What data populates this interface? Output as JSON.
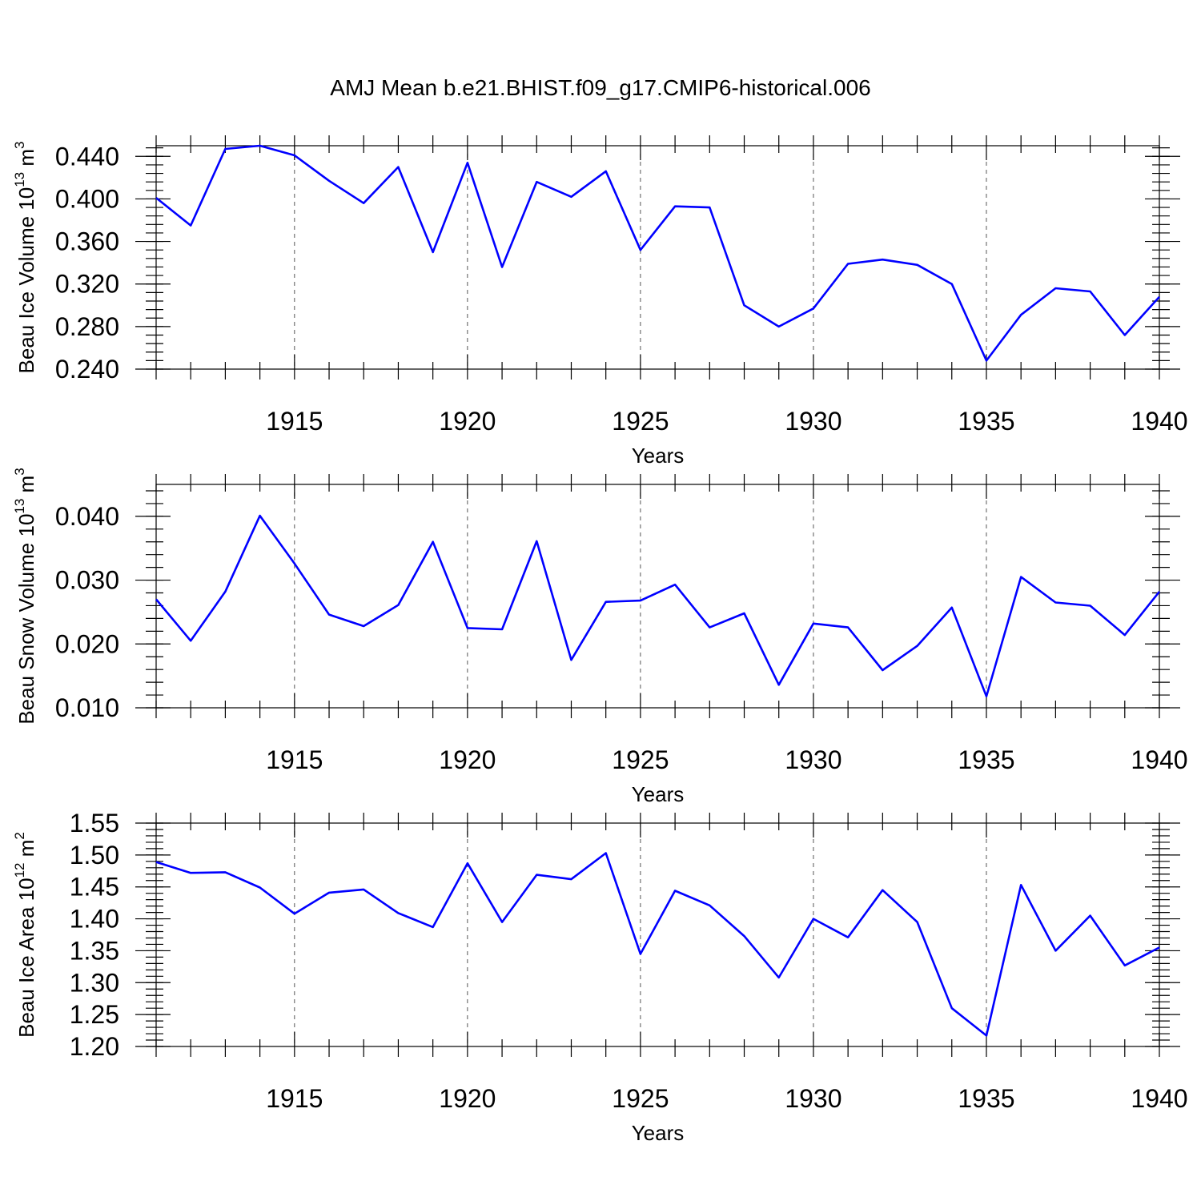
{
  "title": "AMJ Mean b.e21.BHIST.f09_g17.CMIP6-historical.006",
  "series_color": "#0000ff",
  "chart_data": [
    {
      "type": "line",
      "xlabel": "Years",
      "ylabel_parts": [
        "Beau Ice Volume 10",
        "13",
        " m",
        "3"
      ],
      "x": [
        1911,
        1912,
        1913,
        1914,
        1915,
        1916,
        1917,
        1918,
        1919,
        1920,
        1921,
        1922,
        1923,
        1924,
        1925,
        1926,
        1927,
        1928,
        1929,
        1930,
        1931,
        1932,
        1933,
        1934,
        1935,
        1936,
        1937,
        1938,
        1939,
        1940
      ],
      "values": [
        0.401,
        0.375,
        0.447,
        0.45,
        0.441,
        0.417,
        0.396,
        0.43,
        0.35,
        0.434,
        0.336,
        0.416,
        0.402,
        0.426,
        0.352,
        0.393,
        0.392,
        0.3,
        0.28,
        0.297,
        0.339,
        0.343,
        0.338,
        0.32,
        0.248,
        0.291,
        0.316,
        0.313,
        0.272,
        0.308
      ],
      "xlim": [
        1911,
        1940
      ],
      "ylim": [
        0.24,
        0.45
      ],
      "xticks": [
        1915,
        1920,
        1925,
        1930,
        1935,
        1940
      ],
      "xtick_labels": [
        "1915",
        "1920",
        "1925",
        "1930",
        "1935",
        "1940"
      ],
      "yticks": [
        0.24,
        0.28,
        0.32,
        0.36,
        0.4,
        0.44
      ],
      "ytick_labels": [
        "0.240",
        "0.280",
        "0.320",
        "0.360",
        "0.400",
        "0.440"
      ],
      "yminor_step": 0.008
    },
    {
      "type": "line",
      "xlabel": "Years",
      "ylabel_parts": [
        "Beau Snow Volume 10",
        "13",
        " m",
        "3"
      ],
      "x": [
        1911,
        1912,
        1913,
        1914,
        1915,
        1916,
        1917,
        1918,
        1919,
        1920,
        1921,
        1922,
        1923,
        1924,
        1925,
        1926,
        1927,
        1928,
        1929,
        1930,
        1931,
        1932,
        1933,
        1934,
        1935,
        1936,
        1937,
        1938,
        1939,
        1940
      ],
      "values": [
        0.027,
        0.0205,
        0.0282,
        0.0401,
        0.0326,
        0.0246,
        0.0228,
        0.0261,
        0.036,
        0.0225,
        0.0223,
        0.0361,
        0.0175,
        0.0266,
        0.0268,
        0.0293,
        0.0226,
        0.0248,
        0.0136,
        0.0232,
        0.0226,
        0.0159,
        0.0197,
        0.0257,
        0.0118,
        0.0305,
        0.0265,
        0.026,
        0.0214,
        0.0282
      ],
      "xlim": [
        1911,
        1940
      ],
      "ylim": [
        0.01,
        0.045
      ],
      "xticks": [
        1915,
        1920,
        1925,
        1930,
        1935,
        1940
      ],
      "xtick_labels": [
        "1915",
        "1920",
        "1925",
        "1930",
        "1935",
        "1940"
      ],
      "yticks": [
        0.01,
        0.02,
        0.03,
        0.04
      ],
      "ytick_labels": [
        "0.010",
        "0.020",
        "0.030",
        "0.040"
      ],
      "yminor_step": 0.002
    },
    {
      "type": "line",
      "xlabel": "Years",
      "ylabel_parts": [
        "Beau Ice Area 10",
        "12",
        " m",
        "2"
      ],
      "x": [
        1911,
        1912,
        1913,
        1914,
        1915,
        1916,
        1917,
        1918,
        1919,
        1920,
        1921,
        1922,
        1923,
        1924,
        1925,
        1926,
        1927,
        1928,
        1929,
        1930,
        1931,
        1932,
        1933,
        1934,
        1935,
        1936,
        1937,
        1938,
        1939,
        1940
      ],
      "values": [
        1.489,
        1.472,
        1.473,
        1.449,
        1.408,
        1.441,
        1.446,
        1.409,
        1.387,
        1.487,
        1.395,
        1.469,
        1.462,
        1.503,
        1.345,
        1.444,
        1.421,
        1.373,
        1.308,
        1.4,
        1.371,
        1.445,
        1.395,
        1.26,
        1.217,
        1.453,
        1.35,
        1.405,
        1.327,
        1.355
      ],
      "xlim": [
        1911,
        1940
      ],
      "ylim": [
        1.2,
        1.55
      ],
      "xticks": [
        1915,
        1920,
        1925,
        1930,
        1935,
        1940
      ],
      "xtick_labels": [
        "1915",
        "1920",
        "1925",
        "1930",
        "1935",
        "1940"
      ],
      "yticks": [
        1.2,
        1.25,
        1.3,
        1.35,
        1.4,
        1.45,
        1.5,
        1.55
      ],
      "ytick_labels": [
        "1.20",
        "1.25",
        "1.30",
        "1.35",
        "1.40",
        "1.45",
        "1.50",
        "1.55"
      ],
      "yminor_step": 0.01
    }
  ]
}
